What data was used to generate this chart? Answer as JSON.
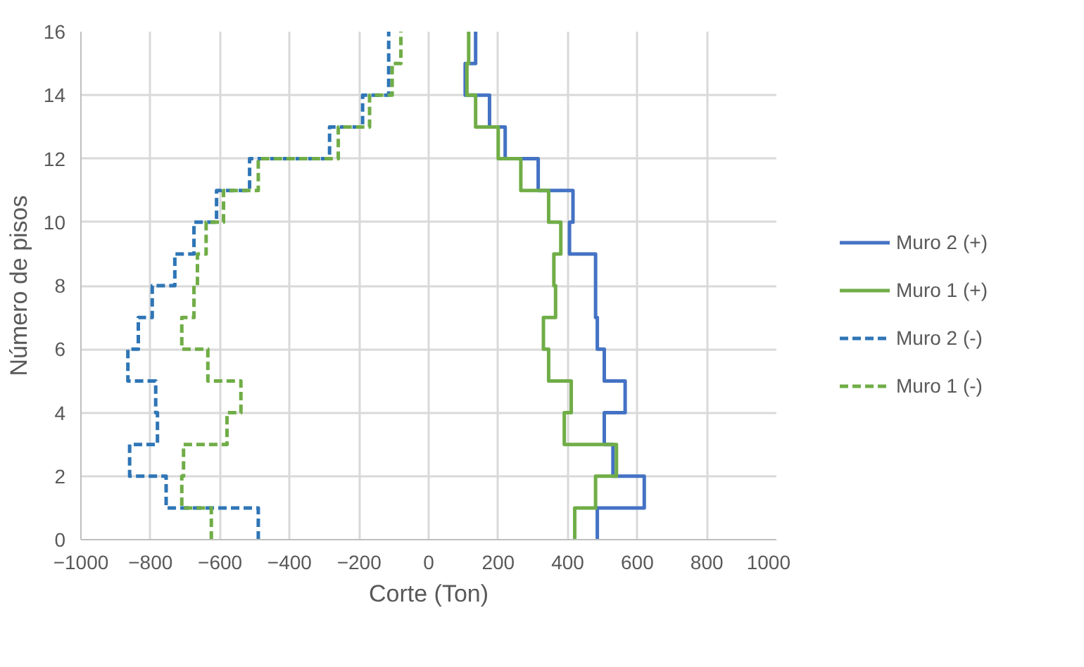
{
  "chart_data": {
    "type": "line",
    "xlabel": "Corte (Ton)",
    "ylabel": "Número de pisos",
    "xlim": [
      -1000,
      1000
    ],
    "xticks": [
      -1000,
      -800,
      -600,
      -400,
      -200,
      0,
      200,
      400,
      600,
      800,
      1000
    ],
    "ylim": [
      0,
      16
    ],
    "yticks": [
      0,
      2,
      4,
      6,
      8,
      10,
      12,
      14,
      16
    ],
    "grid": true,
    "legend": "right",
    "marker": "none",
    "series": [
      {
        "name": "Muro 2 (+)",
        "color": "#4472c4",
        "line_style": "solid",
        "x": [
          485,
          485,
          620,
          620,
          530,
          530,
          505,
          505,
          565,
          565,
          505,
          505,
          485,
          485,
          480,
          480,
          480,
          480,
          405,
          405,
          415,
          415,
          315,
          315,
          220,
          220,
          175,
          175,
          105,
          105,
          135,
          135
        ],
        "values": [
          0,
          1,
          1,
          2,
          2,
          3,
          3,
          4,
          4,
          5,
          5,
          6,
          6,
          7,
          7,
          8,
          8,
          9,
          9,
          10,
          10,
          11,
          11,
          12,
          12,
          13,
          13,
          14,
          14,
          15,
          15,
          16
        ]
      },
      {
        "name": "Muro 1 (+)",
        "color": "#70ad47",
        "line_style": "solid",
        "x": [
          420,
          420,
          480,
          480,
          540,
          540,
          390,
          390,
          410,
          410,
          345,
          345,
          330,
          330,
          365,
          365,
          360,
          360,
          380,
          380,
          345,
          345,
          265,
          265,
          200,
          200,
          135,
          135,
          110,
          110,
          115,
          115
        ],
        "values": [
          0,
          1,
          1,
          2,
          2,
          3,
          3,
          4,
          4,
          5,
          5,
          6,
          6,
          7,
          7,
          8,
          8,
          9,
          9,
          10,
          10,
          11,
          11,
          12,
          12,
          13,
          13,
          14,
          14,
          15,
          15,
          16
        ]
      },
      {
        "name": "Muro 2 (-)",
        "color": "#2e75b6",
        "line_style": "dashed",
        "x": [
          -490,
          -490,
          -755,
          -755,
          -860,
          -860,
          -780,
          -780,
          -785,
          -785,
          -865,
          -865,
          -835,
          -835,
          -795,
          -795,
          -730,
          -730,
          -675,
          -675,
          -610,
          -610,
          -515,
          -515,
          -285,
          -285,
          -190,
          -190,
          -115,
          -115,
          -115,
          -115
        ],
        "values": [
          0,
          1,
          1,
          2,
          2,
          3,
          3,
          4,
          4,
          5,
          5,
          6,
          6,
          7,
          7,
          8,
          8,
          9,
          9,
          10,
          10,
          11,
          11,
          12,
          12,
          13,
          13,
          14,
          14,
          15,
          15,
          16
        ]
      },
      {
        "name": "Muro 1 (-)",
        "color": "#70ad47",
        "line_style": "dashed",
        "x": [
          -625,
          -625,
          -710,
          -710,
          -705,
          -705,
          -580,
          -580,
          -540,
          -540,
          -635,
          -635,
          -710,
          -710,
          -675,
          -675,
          -665,
          -665,
          -640,
          -640,
          -590,
          -590,
          -490,
          -490,
          -260,
          -260,
          -170,
          -170,
          -105,
          -105,
          -80,
          -80
        ],
        "values": [
          0,
          1,
          1,
          2,
          2,
          3,
          3,
          4,
          4,
          5,
          5,
          6,
          6,
          7,
          7,
          8,
          8,
          9,
          9,
          10,
          10,
          11,
          11,
          12,
          12,
          13,
          13,
          14,
          14,
          15,
          15,
          16
        ]
      }
    ]
  }
}
